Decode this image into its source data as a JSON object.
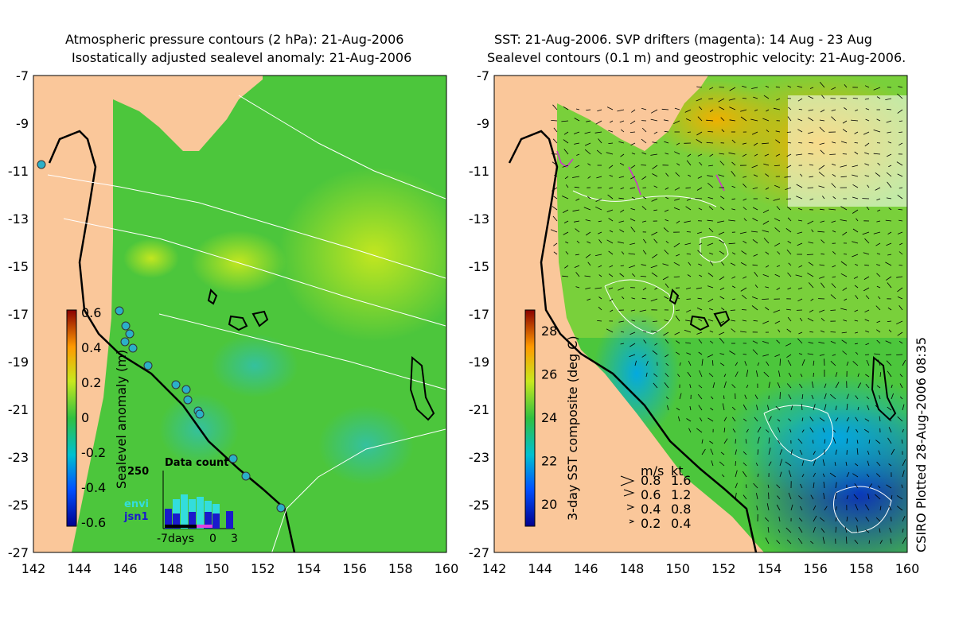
{
  "left_panel": {
    "title_line1": "Atmospheric pressure contours (2 hPa): 21-Aug-2006",
    "title_line2": "Isostatically adjusted sealevel anomaly: 21-Aug-2006",
    "colorbar": {
      "label": "Sealevel anomaly (m)",
      "ticks": [
        "0.6",
        "0.4",
        "0.2",
        "0",
        "-0.2",
        "-0.4",
        "-0.6"
      ]
    },
    "data_count": {
      "title": "Data count",
      "y_label": "250",
      "legend": [
        {
          "label": "envi",
          "color": "#33dddd"
        },
        {
          "label": "jsn1",
          "color": "#1a1acc"
        }
      ],
      "x_labels": [
        "-7days",
        "0",
        "3"
      ]
    }
  },
  "right_panel": {
    "title_line1": "SST: 21-Aug-2006. SVP drifters (magenta): 14 Aug - 23 Aug",
    "title_line2": "Sealevel contours (0.1 m) and geostrophic velocity: 21-Aug-2006.",
    "colorbar": {
      "label": "3-day SST composite (deg C)",
      "ticks": [
        "28",
        "26",
        "24",
        "22",
        "20"
      ]
    },
    "velocity_legend": {
      "header_ms": "m/s",
      "header_kt": "kt",
      "rows": [
        {
          "ms": "0.8",
          "kt": "1.6"
        },
        {
          "ms": "0.6",
          "kt": "1.2"
        },
        {
          "ms": "0.4",
          "kt": "0.8"
        },
        {
          "ms": "0.2",
          "kt": "0.4"
        }
      ]
    },
    "footer_vertical": "CSIRO Plotted 28-Aug-2006 08:35"
  },
  "axes": {
    "lat_labels": [
      "-7",
      "-9",
      "-11",
      "-13",
      "-15",
      "-17",
      "-19",
      "-21",
      "-23",
      "-25",
      "-27"
    ],
    "lon_labels": [
      "142",
      "144",
      "146",
      "148",
      "150",
      "152",
      "154",
      "156",
      "158",
      "160"
    ]
  },
  "colors": {
    "land": "#fac79a",
    "ocean_green": "#4cc63c",
    "ocean_yellow": "#c8e81e",
    "ocean_blue": "#1a64d8",
    "contour_white": "#ffffff",
    "coast_black": "#000000"
  }
}
